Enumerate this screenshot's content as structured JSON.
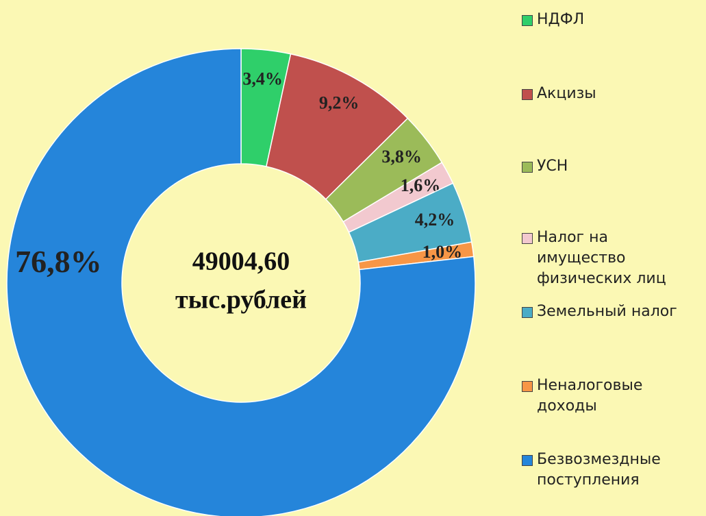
{
  "chart_data": {
    "type": "donut",
    "categories": [
      "НДФЛ",
      "Акцизы",
      "УСН",
      "Налог на имущество физических лиц",
      "Земельный налог",
      "Неналоговые доходы",
      "Безвозмездные поступления"
    ],
    "values": [
      3.4,
      9.2,
      3.8,
      1.6,
      4.2,
      1.0,
      76.8
    ],
    "value_labels": [
      "3,4%",
      "9,2%",
      "3,8%",
      "1,6%",
      "4,2%",
      "1,0%",
      "76,8%"
    ],
    "colors": [
      "#2fcf6a",
      "#c0504d",
      "#9bbb59",
      "#f2c9cf",
      "#4bacc6",
      "#f79646",
      "#2585da"
    ],
    "center_text": [
      "49004,60",
      "тыс.рублей"
    ],
    "legend": "right"
  }
}
